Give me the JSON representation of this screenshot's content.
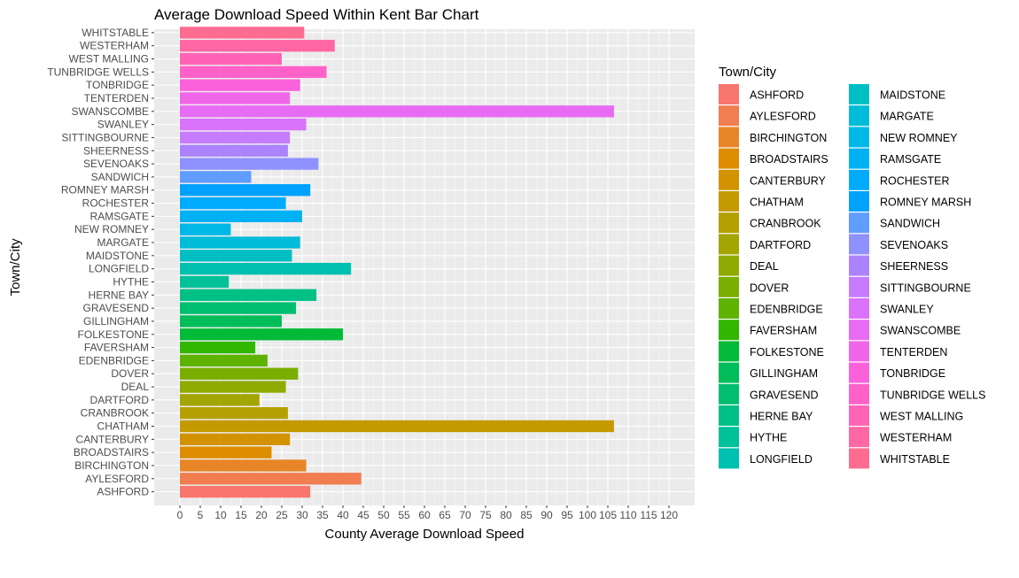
{
  "chart_data": {
    "type": "bar",
    "orientation": "horizontal",
    "title": "Average Download Speed Within Kent Bar Chart",
    "xlabel": "County Average Download Speed",
    "ylabel": "Town/City",
    "xlim": [
      0,
      120
    ],
    "x_ticks": [
      0,
      5,
      10,
      15,
      20,
      25,
      30,
      35,
      40,
      45,
      50,
      55,
      60,
      65,
      70,
      75,
      80,
      85,
      90,
      95,
      100,
      105,
      110,
      115,
      120
    ],
    "categories": [
      "ASHFORD",
      "AYLESFORD",
      "BIRCHINGTON",
      "BROADSTAIRS",
      "CANTERBURY",
      "CHATHAM",
      "CRANBROOK",
      "DARTFORD",
      "DEAL",
      "DOVER",
      "EDENBRIDGE",
      "FAVERSHAM",
      "FOLKESTONE",
      "GILLINGHAM",
      "GRAVESEND",
      "HERNE BAY",
      "HYTHE",
      "LONGFIELD",
      "MAIDSTONE",
      "MARGATE",
      "NEW ROMNEY",
      "RAMSGATE",
      "ROCHESTER",
      "ROMNEY MARSH",
      "SANDWICH",
      "SEVENOAKS",
      "SHEERNESS",
      "SITTINGBOURNE",
      "SWANLEY",
      "SWANSCOMBE",
      "TENTERDEN",
      "TONBRIDGE",
      "TUNBRIDGE WELLS",
      "WEST MALLING",
      "WESTERHAM",
      "WHITSTABLE"
    ],
    "values": [
      32,
      44.5,
      31,
      22.5,
      27,
      106.5,
      26.5,
      19.5,
      26,
      29,
      21.5,
      18.5,
      40,
      25,
      28.5,
      33.5,
      12,
      42,
      27.5,
      29.5,
      12.5,
      30,
      26,
      32,
      17.5,
      34,
      26.5,
      27,
      31,
      106.5,
      27,
      29.5,
      36,
      25,
      38,
      30.5
    ],
    "colors": [
      "#F8766D",
      "#F17D51",
      "#E88526",
      "#DE8C00",
      "#D39200",
      "#C49A00",
      "#B4A000",
      "#A3A500",
      "#8FAA00",
      "#7AAE00",
      "#5EB300",
      "#31B700",
      "#00BA38",
      "#00BC59",
      "#00BE70",
      "#00C086",
      "#00C19A",
      "#00C0AF",
      "#00BFC4",
      "#00BCD8",
      "#00B8E7",
      "#00B2F3",
      "#00ABFD",
      "#00A1FF",
      "#619CFF",
      "#8F91FF",
      "#AB82FF",
      "#C77CFF",
      "#DB72FB",
      "#E76BF3",
      "#F166E8",
      "#FA62DB",
      "#FF61C9",
      "#FF63B6",
      "#FF67A4",
      "#FF6C91"
    ],
    "grid": true,
    "legend": {
      "title": "Town/City",
      "position": "right",
      "columns": 2
    }
  }
}
